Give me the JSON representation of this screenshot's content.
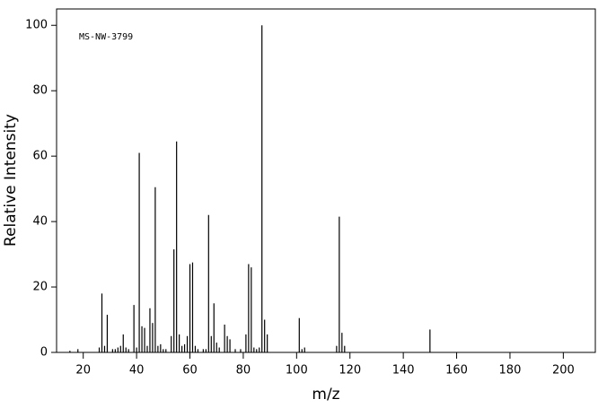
{
  "chart_data": {
    "type": "stick",
    "annotation": "MS-NW-3799",
    "xlabel": "m/z",
    "ylabel": "Relative Intensity",
    "color": "#000000",
    "x": [
      15,
      18,
      26,
      27,
      28,
      29,
      31,
      32,
      33,
      34,
      35,
      36,
      37,
      39,
      40,
      41,
      42,
      43,
      44,
      45,
      46,
      47,
      48,
      49,
      50,
      51,
      53,
      54,
      55,
      56,
      57,
      58,
      59,
      60,
      61,
      62,
      63,
      65,
      66,
      67,
      68,
      69,
      70,
      71,
      73,
      74,
      75,
      77,
      79,
      81,
      82,
      83,
      84,
      85,
      86,
      87,
      88,
      89,
      101,
      102,
      103,
      115,
      116,
      117,
      118,
      150
    ],
    "values": [
      0.5,
      1,
      1.5,
      18,
      2,
      11.5,
      1,
      1,
      1.5,
      2,
      5.5,
      1.5,
      1,
      14.5,
      1.5,
      61,
      8,
      7.5,
      2,
      13.5,
      9,
      50.5,
      2,
      2.5,
      1,
      1,
      5,
      31.5,
      64.5,
      5.5,
      2,
      2.5,
      5,
      27,
      27.5,
      2,
      1,
      1,
      1,
      42,
      5,
      15,
      3,
      1.5,
      8.5,
      5,
      4,
      1,
      1,
      5.5,
      27,
      26,
      1.5,
      1,
      1.5,
      100,
      10,
      5.5,
      10.5,
      1,
      1.5,
      2,
      41.5,
      6,
      2,
      7
    ],
    "xlim": [
      10,
      212
    ],
    "ylim": [
      0,
      105
    ],
    "xticks": [
      20,
      40,
      60,
      80,
      100,
      120,
      140,
      160,
      180,
      200
    ],
    "yticks": [
      0,
      20,
      40,
      60,
      80,
      100
    ]
  }
}
